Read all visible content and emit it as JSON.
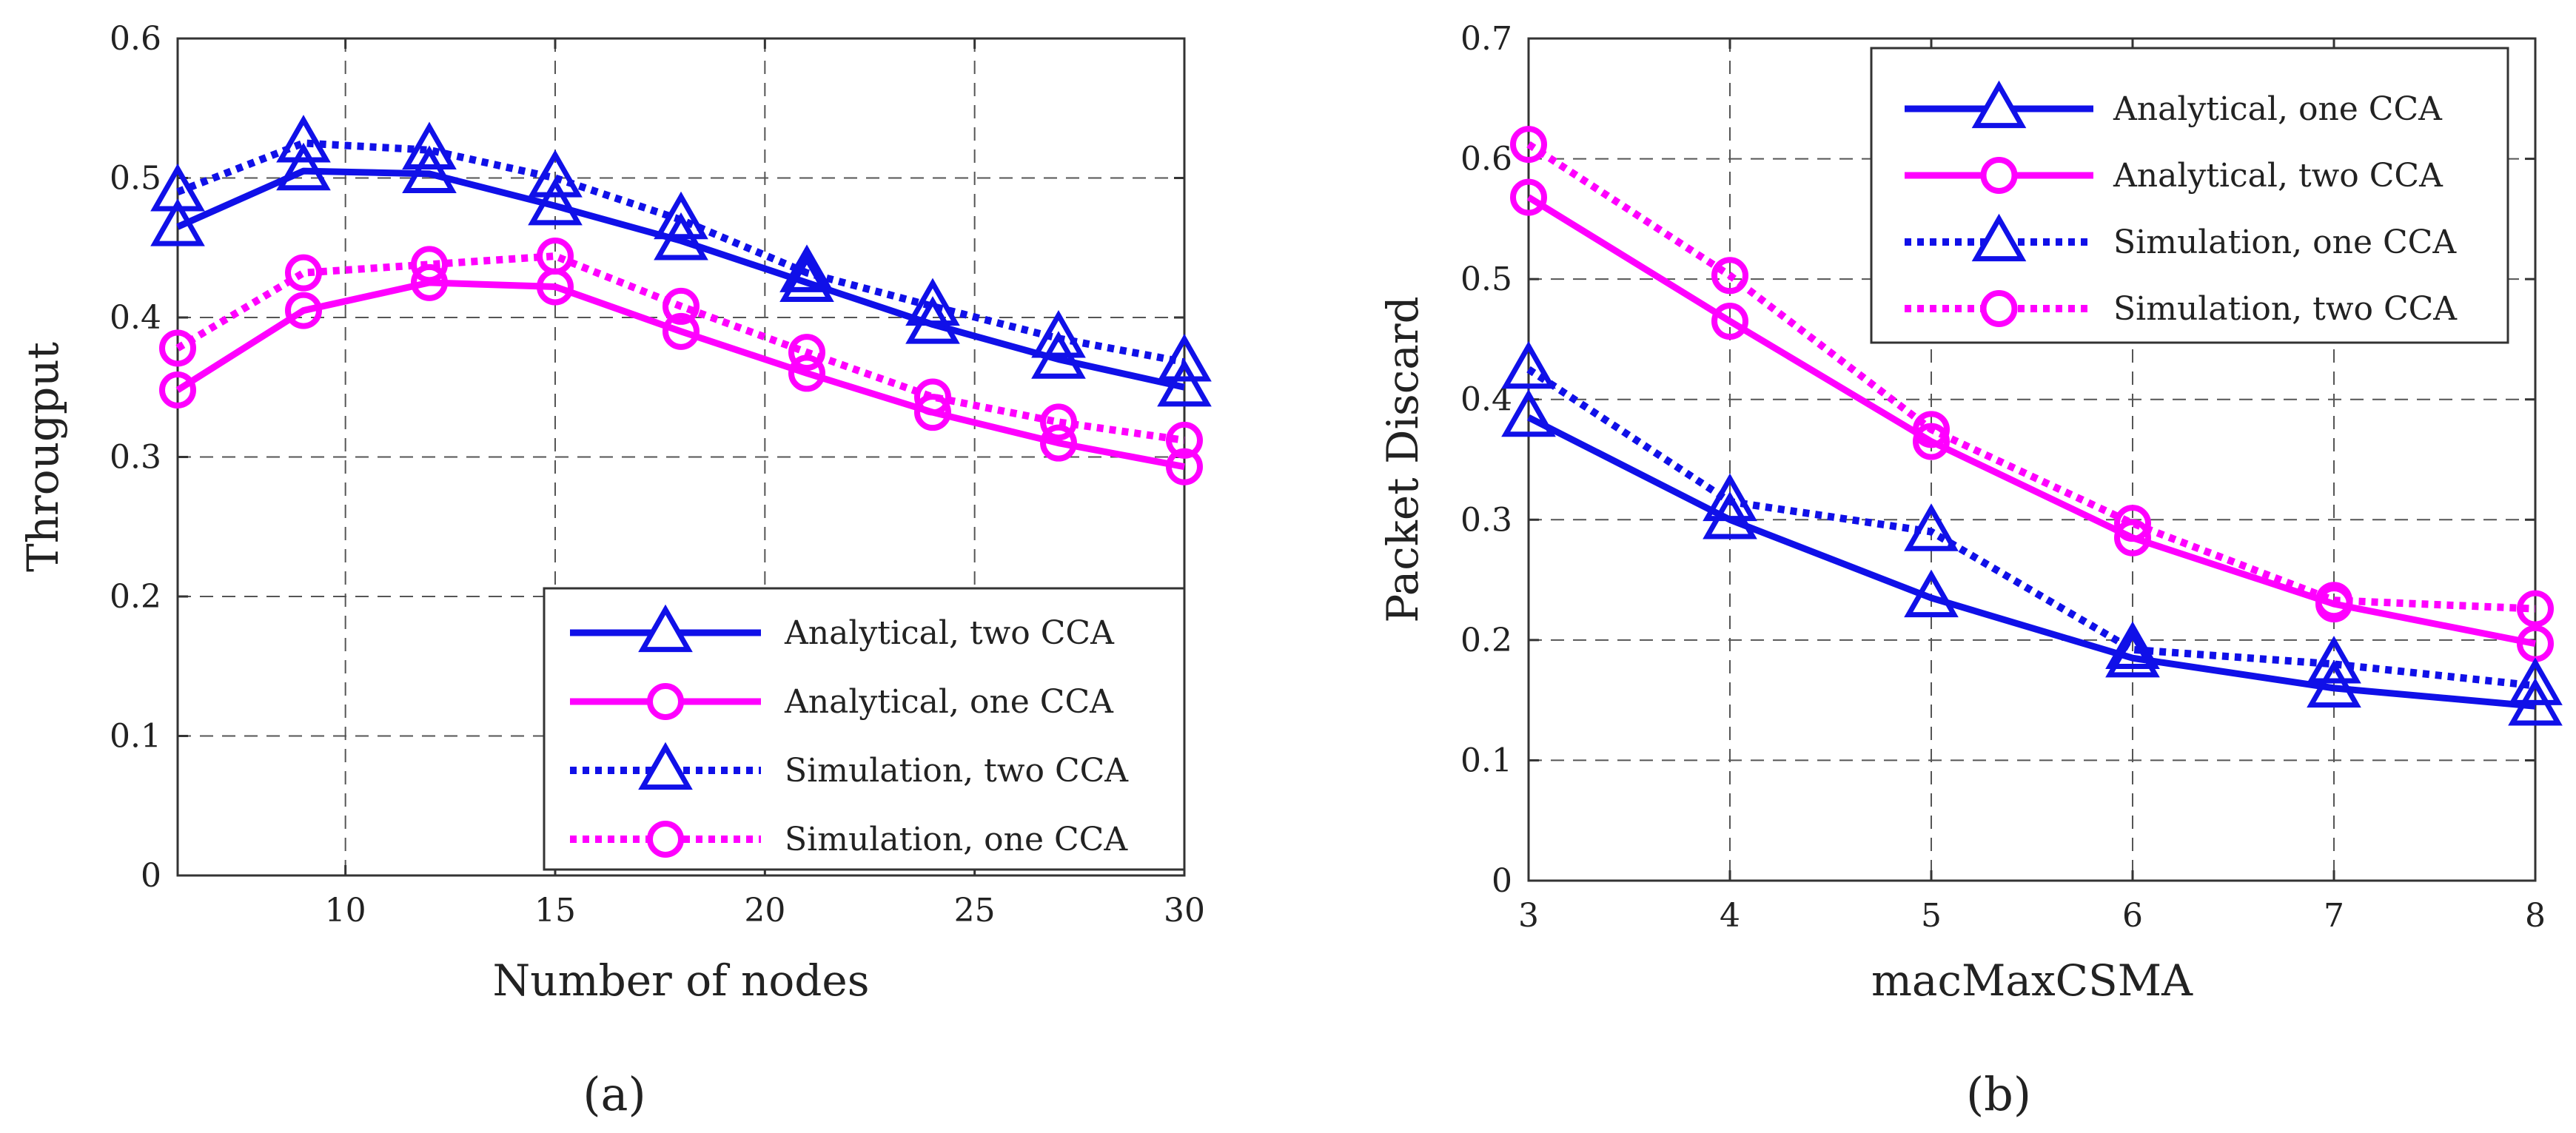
{
  "colors": {
    "analytical_blue": "#1010e8",
    "analytical_magenta": "#ff00ff"
  },
  "chart_data": [
    {
      "type": "line",
      "panel_label": "(a)",
      "xlabel": "Number of nodes",
      "ylabel": "Througput",
      "xlim": [
        6,
        30
      ],
      "ylim": [
        0,
        0.6
      ],
      "xticks": [
        "10",
        "15",
        "20",
        "25",
        "30"
      ],
      "yticks": [
        "0",
        "0.1",
        "0.2",
        "0.3",
        "0.4",
        "0.5",
        "0.6"
      ],
      "grid": true,
      "legend_position": "bottom-right",
      "x": [
        6,
        9,
        12,
        15,
        18,
        21,
        24,
        27,
        30
      ],
      "series": [
        {
          "name": "Analytical, two CCA",
          "color": "#1010e8",
          "style": "solid",
          "marker": "triangle",
          "values": [
            0.465,
            0.505,
            0.503,
            0.48,
            0.455,
            0.425,
            0.395,
            0.37,
            0.35
          ]
        },
        {
          "name": "Analytical, one CCA",
          "color": "#ff00ff",
          "style": "solid",
          "marker": "circle",
          "values": [
            0.348,
            0.405,
            0.425,
            0.422,
            0.39,
            0.36,
            0.332,
            0.31,
            0.293
          ]
        },
        {
          "name": "Simulation, two CCA",
          "color": "#1010e8",
          "style": "dotted",
          "marker": "triangle",
          "values": [
            0.49,
            0.525,
            0.52,
            0.5,
            0.47,
            0.432,
            0.408,
            0.385,
            0.368
          ]
        },
        {
          "name": "Simulation, one CCA",
          "color": "#ff00ff",
          "style": "dotted",
          "marker": "circle",
          "values": [
            0.378,
            0.432,
            0.438,
            0.444,
            0.408,
            0.375,
            0.343,
            0.325,
            0.312
          ]
        }
      ]
    },
    {
      "type": "line",
      "panel_label": "(b)",
      "xlabel": "macMaxCSMA",
      "ylabel": "Packet Discard",
      "xlim": [
        3,
        8
      ],
      "ylim": [
        0,
        0.7
      ],
      "xticks": [
        "3",
        "4",
        "5",
        "6",
        "7",
        "8"
      ],
      "yticks": [
        "0",
        "0.1",
        "0.2",
        "0.3",
        "0.4",
        "0.5",
        "0.6",
        "0.7"
      ],
      "grid": true,
      "legend_position": "top-right",
      "x": [
        3,
        4,
        5,
        6,
        7,
        8
      ],
      "series": [
        {
          "name": "Analytical, one CCA",
          "color": "#1010e8",
          "style": "solid",
          "marker": "triangle",
          "values": [
            0.385,
            0.3,
            0.235,
            0.185,
            0.16,
            0.145
          ]
        },
        {
          "name": "Analytical, two CCA",
          "color": "#ff00ff",
          "style": "solid",
          "marker": "circle",
          "values": [
            0.568,
            0.465,
            0.365,
            0.285,
            0.23,
            0.197
          ]
        },
        {
          "name": "Simulation, one CCA",
          "color": "#1010e8",
          "style": "dotted",
          "marker": "triangle",
          "values": [
            0.425,
            0.315,
            0.29,
            0.192,
            0.18,
            0.162
          ]
        },
        {
          "name": "Simulation, two CCA",
          "color": "#ff00ff",
          "style": "dotted",
          "marker": "circle",
          "values": [
            0.612,
            0.503,
            0.375,
            0.297,
            0.233,
            0.226
          ]
        }
      ]
    }
  ]
}
